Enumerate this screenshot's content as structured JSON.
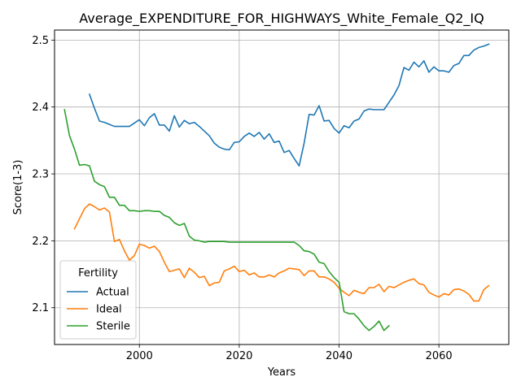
{
  "chart_data": {
    "type": "line",
    "title": "Average_EXPENDITURE_FOR_HIGHWAYS_White_Female_Q2_IQ",
    "xlabel": "Years",
    "ylabel": "Score(1-3)",
    "xlim": [
      1983,
      2074
    ],
    "ylim": [
      2.045,
      2.515
    ],
    "xticks": [
      2000,
      2020,
      2040,
      2060
    ],
    "yticks": [
      2.1,
      2.2,
      2.3,
      2.4,
      2.5
    ],
    "grid": true,
    "legend": {
      "title": "Fertility",
      "placement": "lower-left"
    },
    "series": [
      {
        "name": "Actual",
        "color": "#1f77b4",
        "x": [
          1990,
          1991,
          1992,
          1993,
          1994,
          1995,
          1996,
          1997,
          1998,
          1999,
          2000,
          2001,
          2002,
          2003,
          2004,
          2005,
          2006,
          2007,
          2008,
          2009,
          2010,
          2011,
          2012,
          2013,
          2014,
          2015,
          2016,
          2017,
          2018,
          2019,
          2020,
          2021,
          2022,
          2023,
          2024,
          2025,
          2026,
          2027,
          2028,
          2029,
          2030,
          2031,
          2032,
          2033,
          2034,
          2035,
          2036,
          2037,
          2038,
          2039,
          2040,
          2041,
          2042,
          2043,
          2044,
          2045,
          2046,
          2047,
          2048,
          2049,
          2050,
          2051,
          2052,
          2053,
          2054,
          2055,
          2056,
          2057,
          2058,
          2059,
          2060,
          2061,
          2062,
          2063,
          2064,
          2065,
          2066,
          2067,
          2068,
          2069,
          2070
        ],
        "y": [
          2.419,
          2.398,
          2.379,
          2.377,
          2.374,
          2.371,
          2.371,
          2.371,
          2.371,
          2.376,
          2.381,
          2.372,
          2.384,
          2.39,
          2.373,
          2.373,
          2.364,
          2.387,
          2.37,
          2.38,
          2.375,
          2.377,
          2.371,
          2.364,
          2.357,
          2.346,
          2.34,
          2.337,
          2.336,
          2.347,
          2.348,
          2.356,
          2.361,
          2.356,
          2.362,
          2.352,
          2.36,
          2.347,
          2.349,
          2.332,
          2.335,
          2.323,
          2.312,
          2.346,
          2.389,
          2.388,
          2.402,
          2.379,
          2.38,
          2.368,
          2.361,
          2.372,
          2.369,
          2.379,
          2.382,
          2.394,
          2.397,
          2.396,
          2.396,
          2.396,
          2.407,
          2.418,
          2.432,
          2.459,
          2.455,
          2.467,
          2.46,
          2.469,
          2.452,
          2.46,
          2.454,
          2.454,
          2.452,
          2.462,
          2.465,
          2.477,
          2.477,
          2.485,
          2.489,
          2.491,
          2.494
        ]
      },
      {
        "name": "Ideal",
        "color": "#ff7f0e",
        "x": [
          1987,
          1988,
          1989,
          1990,
          1991,
          1992,
          1993,
          1994,
          1995,
          1996,
          1997,
          1998,
          1999,
          2000,
          2001,
          2002,
          2003,
          2004,
          2005,
          2006,
          2007,
          2008,
          2009,
          2010,
          2011,
          2012,
          2013,
          2014,
          2015,
          2016,
          2017,
          2018,
          2019,
          2020,
          2021,
          2022,
          2023,
          2024,
          2025,
          2026,
          2027,
          2028,
          2029,
          2030,
          2031,
          2032,
          2033,
          2034,
          2035,
          2036,
          2037,
          2038,
          2039,
          2040,
          2041,
          2042,
          2043,
          2044,
          2045,
          2046,
          2047,
          2048,
          2049,
          2050,
          2051,
          2052,
          2053,
          2054,
          2055,
          2056,
          2057,
          2058,
          2059,
          2060,
          2061,
          2062,
          2063,
          2064,
          2065,
          2066,
          2067,
          2068,
          2069,
          2070
        ],
        "y": [
          2.218,
          2.233,
          2.248,
          2.255,
          2.251,
          2.246,
          2.249,
          2.243,
          2.199,
          2.202,
          2.185,
          2.171,
          2.178,
          2.195,
          2.193,
          2.189,
          2.192,
          2.184,
          2.168,
          2.154,
          2.156,
          2.158,
          2.145,
          2.159,
          2.153,
          2.145,
          2.147,
          2.133,
          2.137,
          2.138,
          2.155,
          2.158,
          2.162,
          2.154,
          2.156,
          2.149,
          2.152,
          2.146,
          2.146,
          2.149,
          2.146,
          2.152,
          2.155,
          2.159,
          2.158,
          2.157,
          2.148,
          2.155,
          2.155,
          2.146,
          2.146,
          2.143,
          2.138,
          2.129,
          2.123,
          2.118,
          2.126,
          2.123,
          2.121,
          2.13,
          2.13,
          2.135,
          2.124,
          2.132,
          2.13,
          2.134,
          2.138,
          2.141,
          2.143,
          2.136,
          2.134,
          2.123,
          2.119,
          2.116,
          2.121,
          2.119,
          2.127,
          2.128,
          2.125,
          2.12,
          2.11,
          2.11,
          2.127,
          2.133
        ]
      },
      {
        "name": "Sterile",
        "color": "#2ca02c",
        "x": [
          1985,
          1986,
          1987,
          1988,
          1989,
          1990,
          1991,
          1992,
          1993,
          1994,
          1995,
          1996,
          1997,
          1998,
          1999,
          2000,
          2001,
          2002,
          2003,
          2004,
          2005,
          2006,
          2007,
          2008,
          2009,
          2010,
          2011,
          2012,
          2013,
          2014,
          2015,
          2016,
          2017,
          2018,
          2019,
          2020,
          2021,
          2022,
          2023,
          2024,
          2025,
          2026,
          2027,
          2028,
          2029,
          2030,
          2031,
          2032,
          2033,
          2034,
          2035,
          2036,
          2037,
          2038,
          2039,
          2040,
          2041,
          2042,
          2043,
          2044,
          2045,
          2046,
          2047,
          2048,
          2049,
          2050
        ],
        "y": [
          2.396,
          2.357,
          2.337,
          2.313,
          2.314,
          2.312,
          2.289,
          2.284,
          2.281,
          2.265,
          2.265,
          2.253,
          2.253,
          2.245,
          2.245,
          2.244,
          2.245,
          2.245,
          2.244,
          2.244,
          2.238,
          2.235,
          2.227,
          2.223,
          2.226,
          2.207,
          2.201,
          2.2,
          2.198,
          2.199,
          2.199,
          2.199,
          2.199,
          2.198,
          2.198,
          2.198,
          2.198,
          2.198,
          2.198,
          2.198,
          2.198,
          2.198,
          2.198,
          2.198,
          2.198,
          2.198,
          2.198,
          2.193,
          2.185,
          2.184,
          2.18,
          2.168,
          2.166,
          2.154,
          2.145,
          2.138,
          2.094,
          2.091,
          2.091,
          2.083,
          2.073,
          2.066,
          2.072,
          2.08,
          2.066,
          2.073
        ]
      }
    ]
  }
}
